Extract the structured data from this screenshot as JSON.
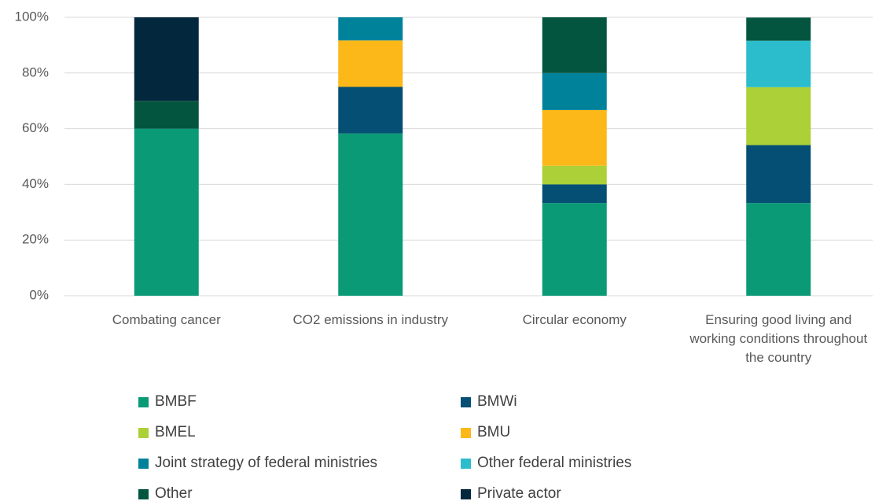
{
  "chart_data": {
    "type": "stacked_bar",
    "categories": [
      "Combating cancer",
      "CO2 emissions in industry",
      "Circular economy",
      "Ensuring good living and working conditions throughout the country"
    ],
    "series": [
      {
        "name": "BMBF",
        "color": "#0a9a76",
        "values": [
          60,
          58.3,
          33.3,
          33.3
        ]
      },
      {
        "name": "BMWi",
        "color": "#054f74",
        "values": [
          0,
          16.7,
          6.7,
          20.8
        ]
      },
      {
        "name": "BMEL",
        "color": "#acd037",
        "values": [
          0,
          0,
          6.7,
          20.8
        ]
      },
      {
        "name": "BMU",
        "color": "#fbb818",
        "values": [
          0,
          16.7,
          20,
          0
        ]
      },
      {
        "name": "Joint strategy of federal ministries",
        "color": "#00829a",
        "values": [
          0,
          8.3,
          13.3,
          0
        ]
      },
      {
        "name": "Other federal ministries",
        "color": "#2bbdcc",
        "values": [
          0,
          0,
          0,
          16.7
        ]
      },
      {
        "name": "Other",
        "color": "#03553f",
        "values": [
          10,
          0,
          20,
          8.3
        ]
      },
      {
        "name": "Private actor",
        "color": "#03283d",
        "values": [
          30,
          0,
          0,
          0
        ]
      }
    ],
    "ylim": [
      0,
      100
    ],
    "yticks": [
      {
        "value": 0,
        "label": "0%"
      },
      {
        "value": 20,
        "label": "20%"
      },
      {
        "value": 40,
        "label": "40%"
      },
      {
        "value": 60,
        "label": "60%"
      },
      {
        "value": 80,
        "label": "80%"
      },
      {
        "value": 100,
        "label": "100%"
      }
    ],
    "grid": true
  }
}
